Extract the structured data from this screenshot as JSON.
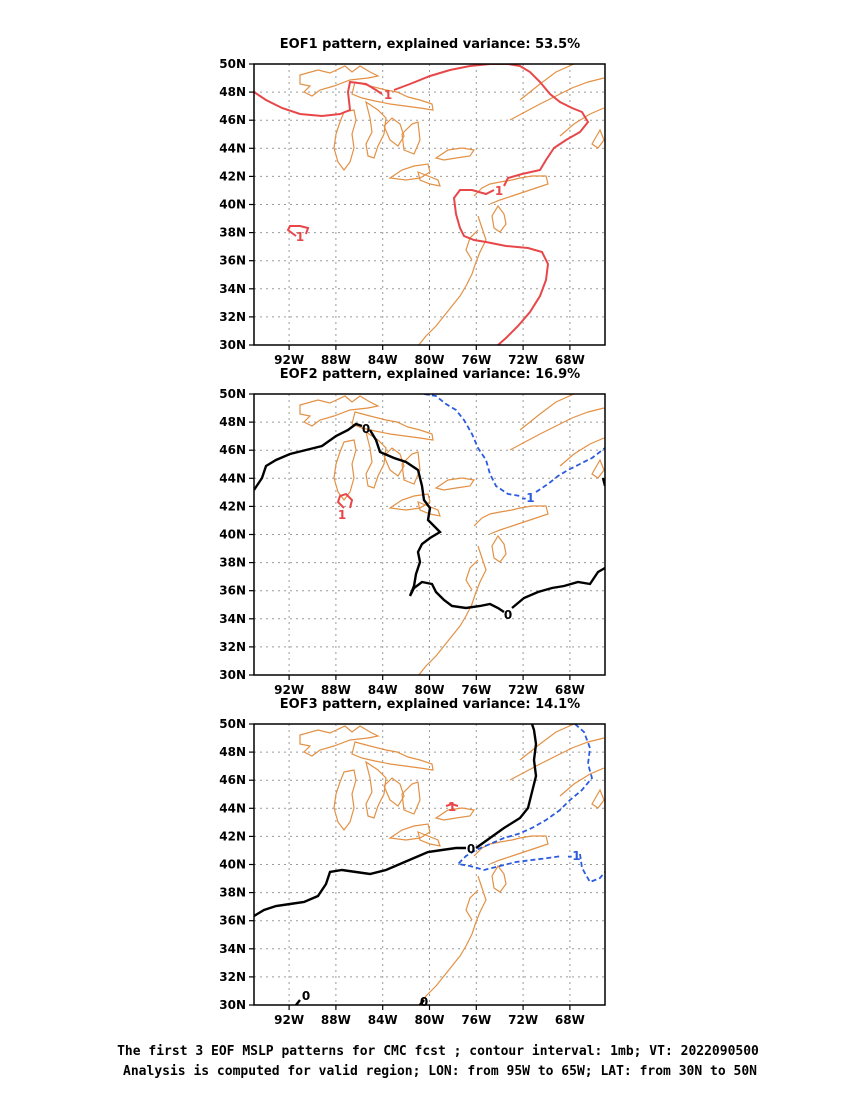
{
  "panels": [
    {
      "title": "EOF1 pattern, explained variance: 53.5%"
    },
    {
      "title": "EOF2 pattern, explained variance: 16.9%"
    },
    {
      "title": "EOF3 pattern, explained variance: 14.1%"
    }
  ],
  "axes": {
    "lon_range": [
      -95,
      -65
    ],
    "lat_range": [
      30,
      50
    ],
    "x_ticks": [
      "92W",
      "88W",
      "84W",
      "80W",
      "76W",
      "72W",
      "68W"
    ],
    "y_ticks": [
      "50N",
      "48N",
      "46N",
      "44N",
      "42N",
      "40N",
      "38N",
      "36N",
      "34N",
      "32N",
      "30N"
    ],
    "grid": "dotted"
  },
  "contour_labels": {
    "positive": "1",
    "negative": "-1",
    "zero": "0"
  },
  "colors": {
    "coastline": "#e39145",
    "positive": "#e8474a",
    "negative": "#2b5be0",
    "zero": "#000000",
    "grid": "#9a9a9a"
  },
  "caption": {
    "line1": "The first 3 EOF MSLP patterns for CMC fcst ; contour interval: 1mb; VT: 2022090500",
    "line2": "Analysis is computed for valid region; LON: from 95W to 65W; LAT: from 30N to 50N"
  }
}
